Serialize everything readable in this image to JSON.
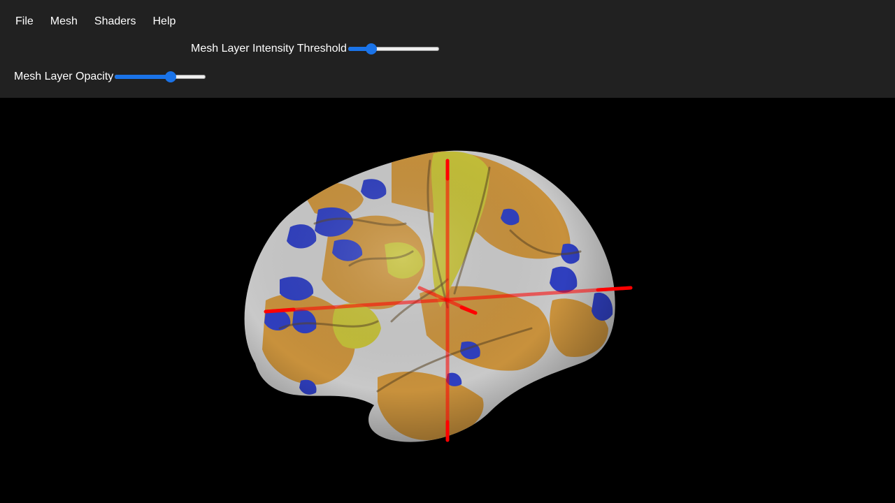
{
  "menu": {
    "items": [
      {
        "label": "File"
      },
      {
        "label": "Mesh"
      },
      {
        "label": "Shaders"
      },
      {
        "label": "Help"
      }
    ]
  },
  "controls": {
    "threshold": {
      "label": "Mesh Layer Intensity Threshold",
      "value": 0.22
    },
    "opacity": {
      "label": "Mesh Layer Opacity",
      "value": 0.63
    }
  },
  "colors": {
    "toolbar": "#212121",
    "accent": "#1a73e8",
    "crosshair": "#ff0000",
    "mesh_orange": "#c8913c",
    "mesh_yellow": "#c4bf38",
    "mesh_blue": "#2f3fbf",
    "mesh_gray": "#c9c9c9"
  }
}
